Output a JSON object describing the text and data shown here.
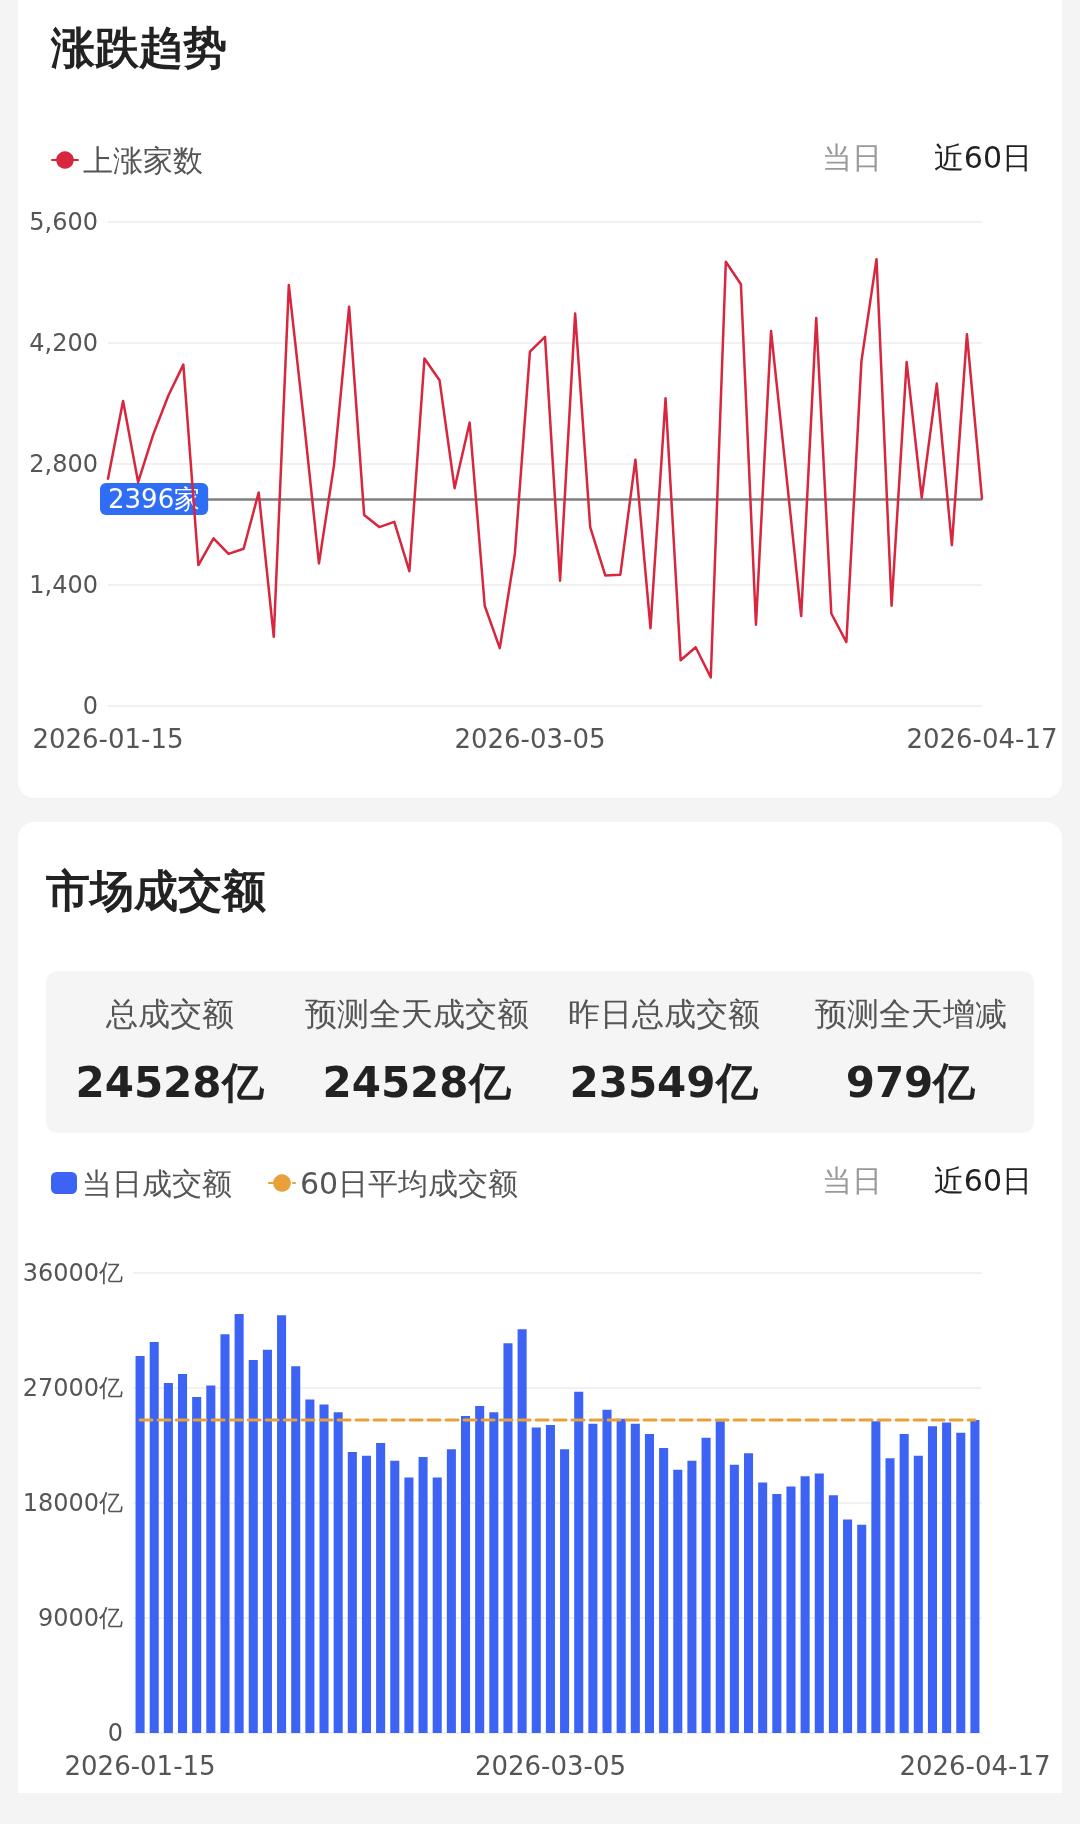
{
  "chart_data": [
    {
      "type": "line",
      "title": "涨跌趋势",
      "categories": [
        "2026-01-15",
        null,
        null,
        null,
        null,
        null,
        null,
        null,
        null,
        null,
        null,
        null,
        null,
        null,
        null,
        null,
        null,
        null,
        null,
        null,
        null,
        null,
        null,
        null,
        null,
        null,
        null,
        null,
        "2026-03-05",
        null,
        null,
        null,
        null,
        null,
        null,
        null,
        null,
        null,
        null,
        null,
        null,
        null,
        null,
        null,
        null,
        null,
        null,
        null,
        null,
        null,
        null,
        null,
        null,
        null,
        null,
        null,
        null,
        null,
        "2026-04-17"
      ],
      "series": [
        {
          "name": "上涨家数",
          "color": "#d7263d",
          "values": [
            2630,
            3530,
            2590,
            3140,
            3590,
            3950,
            1630,
            1940,
            1760,
            1820,
            2470,
            800,
            4870,
            3300,
            1650,
            2790,
            4620,
            2210,
            2070,
            2130,
            1560,
            4020,
            3770,
            2520,
            3280,
            1160,
            670,
            1760,
            4100,
            4270,
            1450,
            4540,
            2070,
            1510,
            1520,
            2850,
            900,
            3560,
            530,
            680,
            330,
            5140,
            4880,
            940,
            4340,
            2700,
            1040,
            4490,
            1070,
            740,
            3990,
            5170,
            1160,
            3980,
            2410,
            3730,
            1860,
            4300,
            2400
          ]
        }
      ],
      "ylim": [
        0,
        5600
      ],
      "yticks": [
        0,
        {
          "value": 1400,
          "label": "1,400"
        },
        {
          "value": 2800,
          "label": "2,800"
        },
        {
          "value": 4200,
          "label": "4,200"
        },
        {
          "value": 5600,
          "label": "5,600"
        }
      ],
      "grid": "y",
      "legend": "top left",
      "marker": "none",
      "line_style": "solid",
      "ref_lines": [
        {
          "axis": "y",
          "value": 2396,
          "label": "2396家",
          "color": "#7f7f7f"
        }
      ],
      "annotations": [
        "当日",
        "近60日"
      ]
    },
    {
      "type": "other",
      "title": "市场成交额",
      "annotations": [
        "总成交额",
        "24528亿",
        "预测全天成交额",
        "24528亿",
        "昨日总成交额",
        "23549亿",
        "预测全天增减",
        "979亿"
      ]
    },
    {
      "type": "bar",
      "categories": [
        "2026-01-15",
        null,
        null,
        null,
        null,
        null,
        null,
        null,
        null,
        null,
        null,
        null,
        null,
        null,
        null,
        null,
        null,
        null,
        null,
        null,
        null,
        null,
        null,
        null,
        null,
        null,
        null,
        null,
        null,
        "2026-03-05",
        null,
        null,
        null,
        null,
        null,
        null,
        null,
        null,
        null,
        null,
        null,
        null,
        null,
        null,
        null,
        null,
        null,
        null,
        null,
        null,
        null,
        null,
        null,
        null,
        null,
        null,
        null,
        null,
        null,
        "2026-04-17"
      ],
      "series": [
        {
          "name": "当日成交额",
          "color": "#3d63f5",
          "values": [
            29500,
            30600,
            27400,
            28100,
            26300,
            27200,
            31200,
            32800,
            29200,
            30000,
            32700,
            28700,
            26100,
            25700,
            25100,
            22000,
            21700,
            22700,
            21300,
            20000,
            21600,
            20000,
            22200,
            24800,
            25600,
            25100,
            30500,
            31600,
            23900,
            24100,
            22200,
            26700,
            24200,
            25300,
            24600,
            24200,
            23400,
            22300,
            20600,
            21300,
            23100,
            24400,
            21000,
            21900,
            19600,
            18700,
            19300,
            20100,
            20300,
            18600,
            16700,
            16300,
            24400,
            21500,
            23400,
            21700,
            24000,
            24300,
            23500,
            24500
          ]
        },
        {
          "name": "60日平均成交额",
          "type": "line",
          "color": "#e8a13a",
          "line_style": "dashed",
          "values": [
            24500,
            24500,
            24500,
            24500,
            24500,
            24500,
            24500,
            24500,
            24500,
            24500,
            24500,
            24500,
            24500,
            24500,
            24500,
            24500,
            24500,
            24500,
            24500,
            24500,
            24500,
            24500,
            24500,
            24500,
            24500,
            24500,
            24500,
            24500,
            24500,
            24500,
            24500,
            24500,
            24500,
            24500,
            24500,
            24500,
            24500,
            24500,
            24500,
            24500,
            24500,
            24500,
            24500,
            24500,
            24500,
            24500,
            24500,
            24500,
            24500,
            24500,
            24500,
            24500,
            24500,
            24500,
            24500,
            24500,
            24500,
            24500,
            24500,
            24500
          ]
        }
      ],
      "ylim": [
        0,
        36000
      ],
      "yticks": [
        0,
        {
          "value": 9000,
          "label": "9000亿"
        },
        {
          "value": 18000,
          "label": "18000亿"
        },
        {
          "value": 27000,
          "label": "27000亿"
        },
        {
          "value": 36000,
          "label": "36000亿"
        }
      ],
      "grid": "y",
      "legend": "top left",
      "marker": "none",
      "annotations": [
        "当日",
        "近60日"
      ]
    }
  ]
}
